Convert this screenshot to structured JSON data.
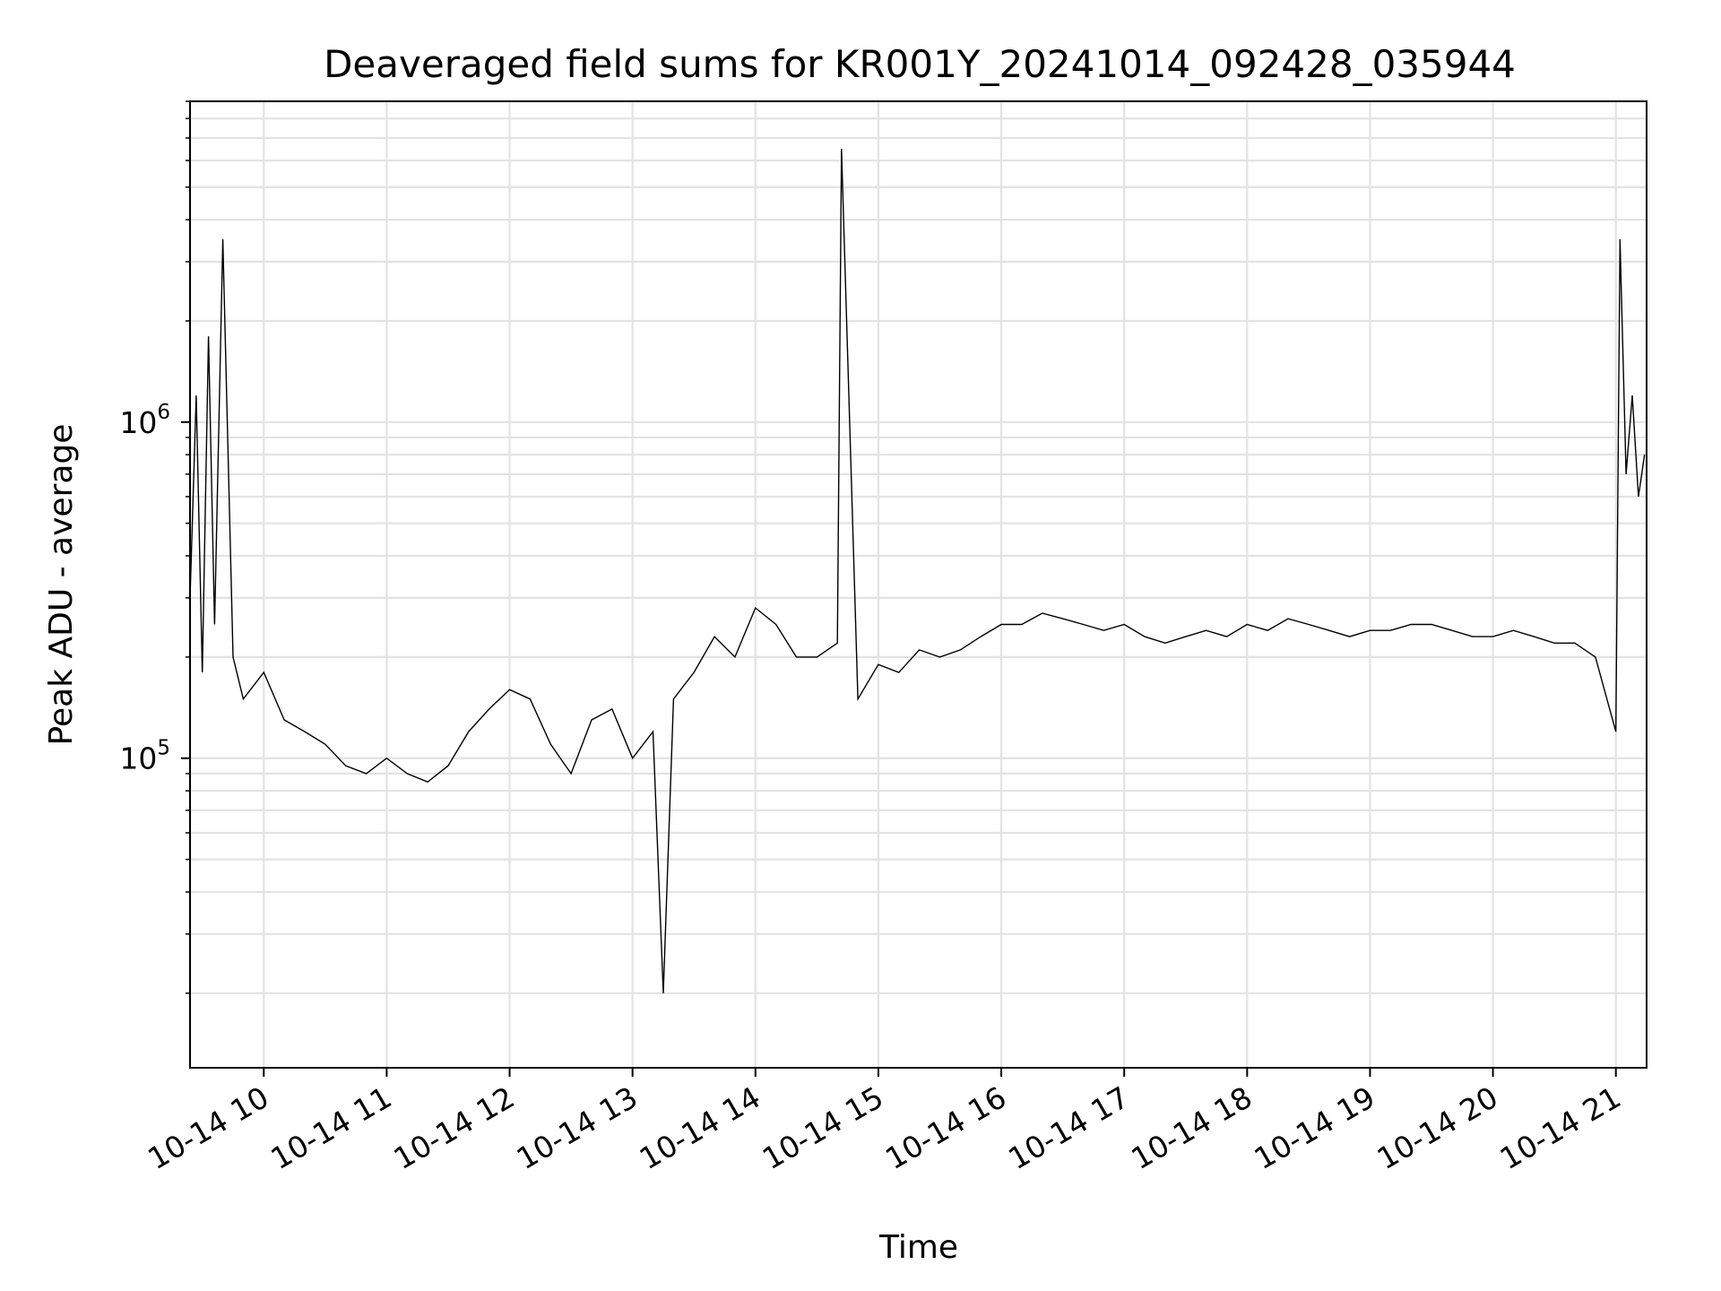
{
  "chart_data": {
    "type": "line",
    "title": "Deaveraged field sums for KR001Y_20241014_092428_035944",
    "xlabel": "Time",
    "ylabel": "Peak ADU - average",
    "xscale": "time",
    "yscale": "log",
    "xlim": [
      "2024-10-14 09:24",
      "2024-10-14 21:15"
    ],
    "ylim": [
      12000,
      9000000
    ],
    "x_ticks": [
      {
        "time": "2024-10-14 10:00",
        "label": "10-14 10"
      },
      {
        "time": "2024-10-14 11:00",
        "label": "10-14 11"
      },
      {
        "time": "2024-10-14 12:00",
        "label": "10-14 12"
      },
      {
        "time": "2024-10-14 13:00",
        "label": "10-14 13"
      },
      {
        "time": "2024-10-14 14:00",
        "label": "10-14 14"
      },
      {
        "time": "2024-10-14 15:00",
        "label": "10-14 15"
      },
      {
        "time": "2024-10-14 16:00",
        "label": "10-14 16"
      },
      {
        "time": "2024-10-14 17:00",
        "label": "10-14 17"
      },
      {
        "time": "2024-10-14 18:00",
        "label": "10-14 18"
      },
      {
        "time": "2024-10-14 19:00",
        "label": "10-14 19"
      },
      {
        "time": "2024-10-14 20:00",
        "label": "10-14 20"
      },
      {
        "time": "2024-10-14 21:00",
        "label": "10-14 21"
      }
    ],
    "y_major_ticks": [
      {
        "value": 100000,
        "base": "10",
        "exp": "5"
      },
      {
        "value": 1000000,
        "base": "10",
        "exp": "6"
      }
    ],
    "grid": true,
    "line_color": "#000000",
    "series": [
      {
        "x": [
          "09:24",
          "09:27",
          "09:30",
          "09:33",
          "09:36",
          "09:40",
          "09:45",
          "09:50",
          "10:00",
          "10:10",
          "10:20",
          "10:30",
          "10:40",
          "10:50",
          "11:00",
          "11:10",
          "11:20",
          "11:30",
          "11:40",
          "11:50",
          "12:00",
          "12:10",
          "12:20",
          "12:30",
          "12:40",
          "12:50",
          "13:00",
          "13:10",
          "13:15",
          "13:20",
          "13:30",
          "13:40",
          "13:50",
          "14:00",
          "14:10",
          "14:20",
          "14:30",
          "14:40",
          "14:42",
          "14:50",
          "15:00",
          "15:10",
          "15:20",
          "15:30",
          "15:40",
          "15:50",
          "16:00",
          "16:10",
          "16:20",
          "16:30",
          "16:40",
          "16:50",
          "17:00",
          "17:10",
          "17:20",
          "17:30",
          "17:40",
          "17:50",
          "18:00",
          "18:10",
          "18:20",
          "18:30",
          "18:40",
          "18:50",
          "19:00",
          "19:10",
          "19:20",
          "19:30",
          "19:40",
          "19:50",
          "20:00",
          "20:10",
          "20:20",
          "20:30",
          "20:40",
          "20:50",
          "21:00",
          "21:02",
          "21:05",
          "21:08",
          "21:11",
          "21:14"
        ],
        "y": [
          300000,
          1200000,
          180000,
          1800000,
          250000,
          3500000,
          200000,
          150000,
          180000,
          130000,
          120000,
          110000,
          95000,
          90000,
          100000,
          90000,
          85000,
          95000,
          120000,
          140000,
          160000,
          150000,
          110000,
          90000,
          130000,
          140000,
          100000,
          120000,
          20000,
          150000,
          180000,
          230000,
          200000,
          280000,
          250000,
          200000,
          200000,
          220000,
          6500000,
          150000,
          190000,
          180000,
          210000,
          200000,
          210000,
          230000,
          250000,
          250000,
          270000,
          260000,
          250000,
          240000,
          250000,
          230000,
          220000,
          230000,
          240000,
          230000,
          250000,
          240000,
          260000,
          250000,
          240000,
          230000,
          240000,
          240000,
          250000,
          250000,
          240000,
          230000,
          230000,
          240000,
          230000,
          220000,
          220000,
          200000,
          120000,
          3500000,
          700000,
          1200000,
          600000,
          800000
        ]
      }
    ]
  }
}
